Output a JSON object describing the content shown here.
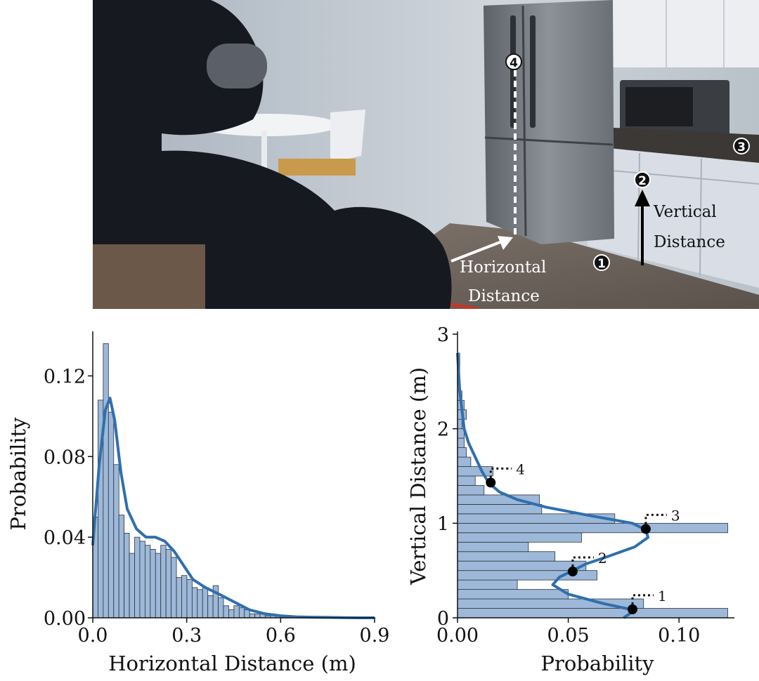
{
  "photo": {
    "horizontal_label": [
      "Horizontal",
      "Distance"
    ],
    "vertical_label": [
      "Vertical",
      "Distance"
    ],
    "markers": [
      "1",
      "2",
      "3",
      "4"
    ],
    "colors": {
      "wall": "#c3cad2",
      "floor": "#6d625a",
      "robot": "#15181e",
      "fridge": "#7b7f86",
      "cabinet": "#dfe3ea",
      "arrow_white": "#ffffff",
      "arrow_black": "#000000"
    }
  },
  "chart_data": [
    {
      "type": "bar",
      "orientation": "vertical",
      "xlabel": "Horizontal Distance (m)",
      "ylabel": "Probability",
      "xlim": [
        0,
        0.9
      ],
      "ylim": [
        0,
        0.14
      ],
      "xticks": [
        "0.0",
        "0.3",
        "0.6",
        "0.9"
      ],
      "yticks": [
        "0.00",
        "0.04",
        "0.08",
        "0.12"
      ],
      "bin_width": 0.0167,
      "bins_start": 0,
      "values": [
        0.05,
        0.108,
        0.136,
        0.102,
        0.076,
        0.051,
        0.042,
        0.032,
        0.04,
        0.038,
        0.036,
        0.034,
        0.032,
        0.036,
        0.034,
        0.03,
        0.02,
        0.021,
        0.019,
        0.015,
        0.014,
        0.015,
        0.011,
        0.016,
        0.01,
        0.006,
        0.004,
        0.006,
        0.005,
        0.004,
        0.002,
        0.002,
        0.002,
        0.001,
        0.001,
        0.001,
        0.001,
        0.001,
        0.0005,
        0.0005,
        0.0004,
        0.0003,
        0.0002,
        0.0002,
        0.0001,
        0.0001,
        0.0001,
        0.0001,
        0.0001,
        0.0001,
        0.0001,
        0.0001,
        0.0001,
        0.0001
      ],
      "kde_x": [
        0.0,
        0.02,
        0.04,
        0.055,
        0.07,
        0.09,
        0.11,
        0.14,
        0.17,
        0.2,
        0.23,
        0.26,
        0.29,
        0.32,
        0.36,
        0.4,
        0.45,
        0.5,
        0.55,
        0.6,
        0.65,
        0.7,
        0.75,
        0.8,
        0.85,
        0.9
      ],
      "kde_y": [
        0.036,
        0.075,
        0.103,
        0.109,
        0.098,
        0.072,
        0.054,
        0.044,
        0.04,
        0.04,
        0.038,
        0.033,
        0.026,
        0.019,
        0.015,
        0.012,
        0.008,
        0.004,
        0.002,
        0.001,
        0.0005,
        0.0003,
        0.0002,
        0.0001,
        0.0,
        0.0
      ],
      "bar_color": "#9db8d8",
      "line_color": "#2f6fae"
    },
    {
      "type": "bar",
      "orientation": "horizontal",
      "xlabel": "Probability",
      "ylabel": "Vertical Distance (m)",
      "xlim": [
        0,
        0.125
      ],
      "ylim": [
        0,
        3
      ],
      "xticks": [
        "0.00",
        "0.05",
        "0.10"
      ],
      "yticks": [
        "0",
        "1",
        "2",
        "3"
      ],
      "bin_height": 0.1,
      "bins_start": 0,
      "values": [
        0.122,
        0.084,
        0.05,
        0.027,
        0.063,
        0.058,
        0.044,
        0.032,
        0.056,
        0.122,
        0.071,
        0.038,
        0.037,
        0.012,
        0.008,
        0.016,
        0.006,
        0.004,
        0.003,
        0.003,
        0.002,
        0.004,
        0.003,
        0.002,
        0.001,
        0.001,
        0.001,
        0.001
      ],
      "kde_y": [
        0.0,
        0.08,
        0.15,
        0.25,
        0.35,
        0.43,
        0.5,
        0.57,
        0.65,
        0.75,
        0.85,
        0.93,
        1.0,
        1.08,
        1.17,
        1.25,
        1.33,
        1.43,
        1.55,
        1.7,
        1.85,
        2.0,
        2.2,
        2.4,
        2.6,
        2.8
      ],
      "kde_x": [
        0.075,
        0.08,
        0.066,
        0.05,
        0.043,
        0.046,
        0.052,
        0.058,
        0.068,
        0.08,
        0.086,
        0.085,
        0.079,
        0.06,
        0.04,
        0.027,
        0.019,
        0.014,
        0.011,
        0.008,
        0.005,
        0.003,
        0.002,
        0.001,
        0.0005,
        0.0
      ],
      "peaks": [
        {
          "label": "1",
          "x": 0.079,
          "y": 0.09
        },
        {
          "label": "2",
          "x": 0.052,
          "y": 0.49
        },
        {
          "label": "3",
          "x": 0.085,
          "y": 0.94
        },
        {
          "label": "4",
          "x": 0.015,
          "y": 1.43
        }
      ],
      "bar_color": "#9db8d8",
      "line_color": "#2f6fae"
    }
  ]
}
